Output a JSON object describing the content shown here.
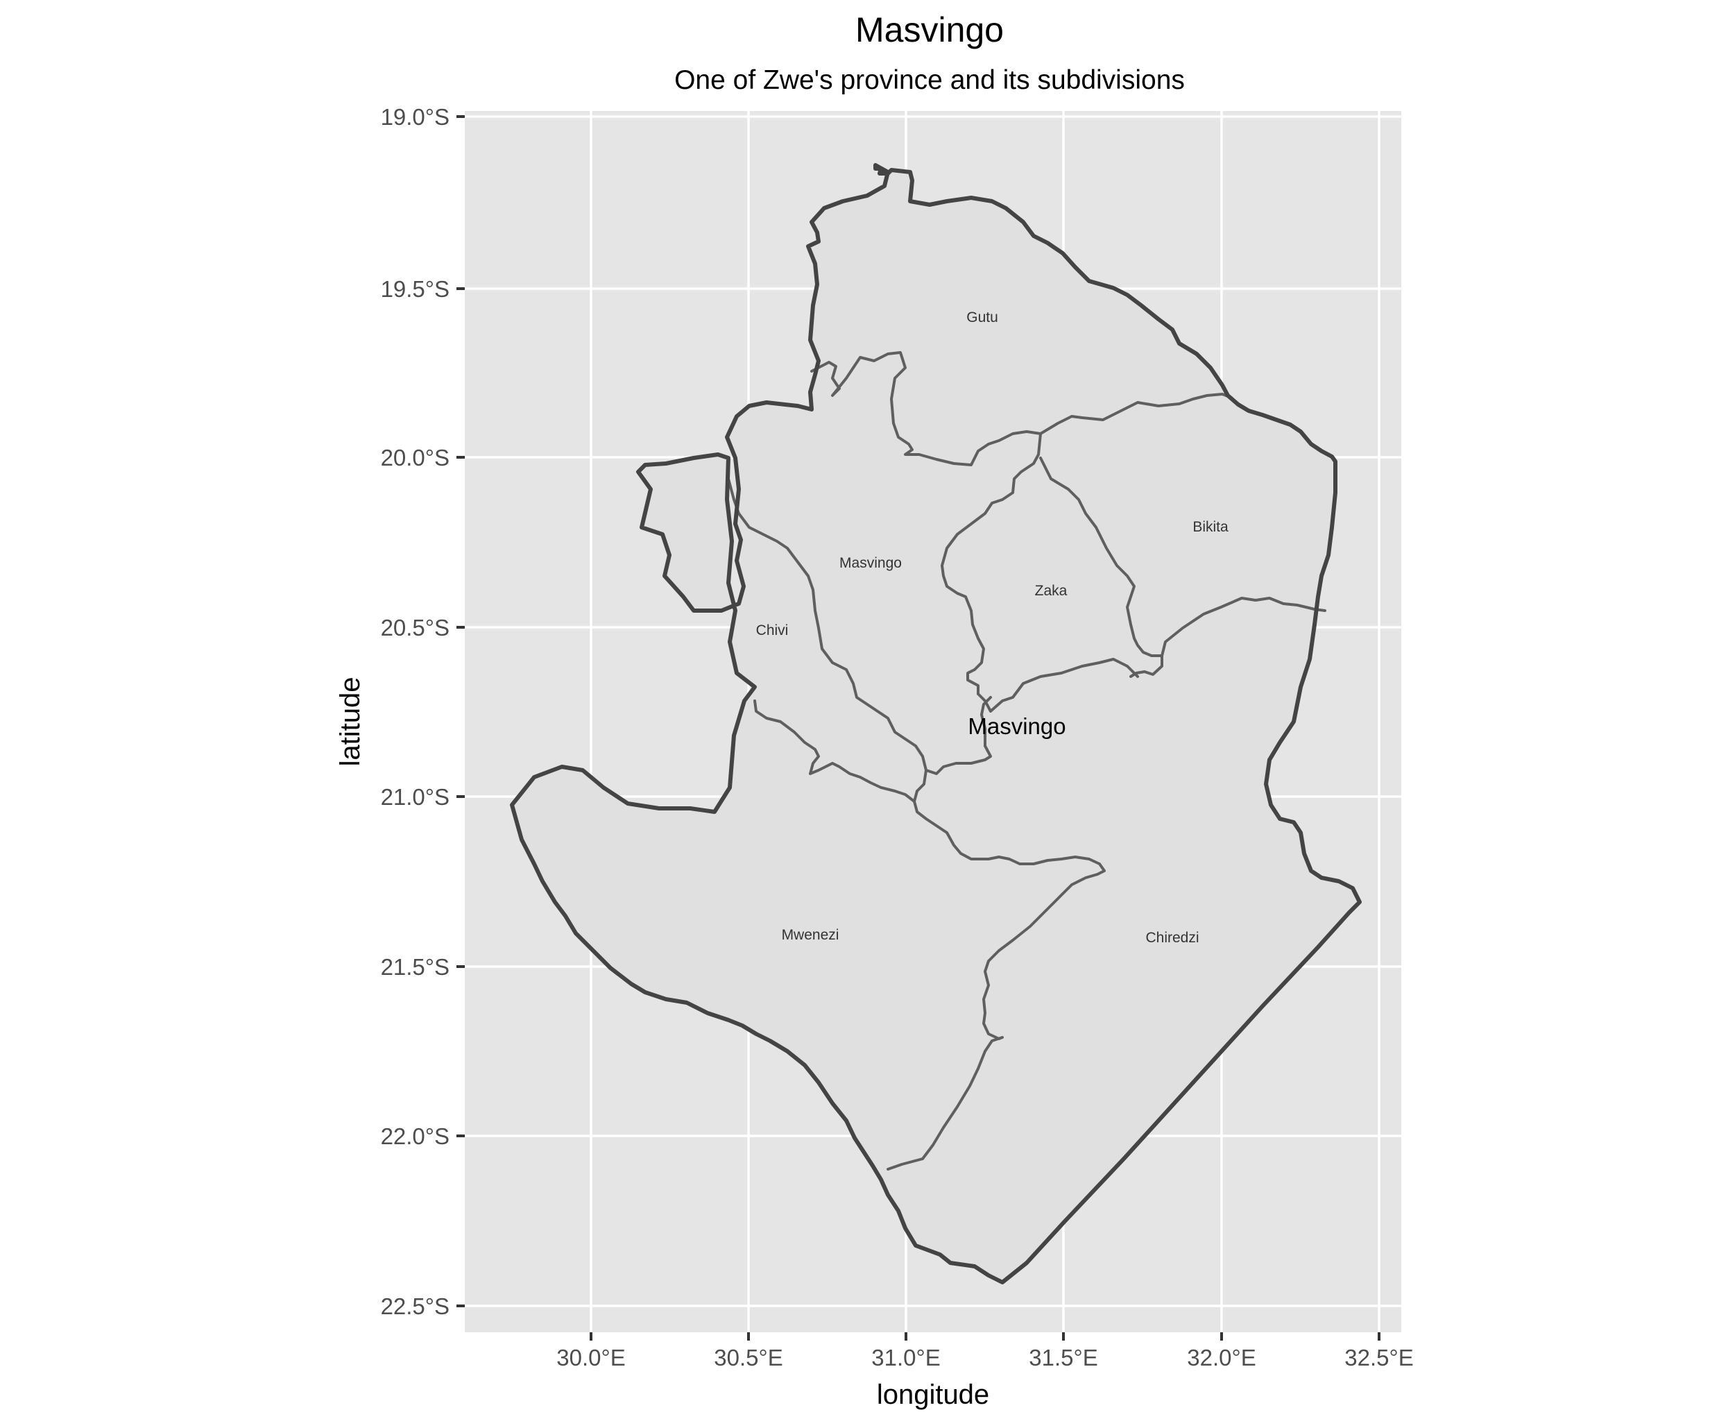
{
  "map": {
    "title": "Masvingo",
    "subtitle": "One of Zwe's province and its subdivisions",
    "xlabel": "longitude",
    "ylabel": "latitude",
    "province_label": "Masvingo",
    "colors": {
      "panel_background": "#e5e5e5",
      "region_fill": "#e0e0e0",
      "outer_border": "#444444",
      "inner_border": "#5f5f5f",
      "gridline": "#ffffff"
    },
    "x_ticks": [
      "30.0°E",
      "30.5°E",
      "31.0°E",
      "31.5°E",
      "32.0°E",
      "32.5°E"
    ],
    "y_ticks": [
      "19.0°S",
      "19.5°S",
      "20.0°S",
      "20.5°S",
      "21.0°S",
      "21.5°S",
      "22.0°S",
      "22.5°S"
    ],
    "districts": [
      "Gutu",
      "Bikita",
      "Masvingo",
      "Zaka",
      "Chivi",
      "Mwenezi",
      "Chiredzi"
    ]
  }
}
